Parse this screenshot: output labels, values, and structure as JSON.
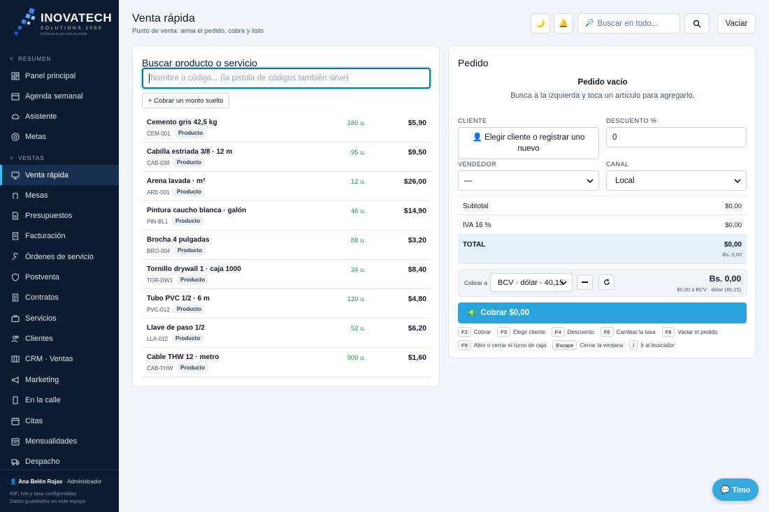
{
  "brand": {
    "name": "INOVATECH",
    "sub": "SOLUTIONS 2050",
    "slogan": "Creamos lo que aún no existe"
  },
  "sidebar": {
    "sections": [
      {
        "label": "RESUMEN",
        "items": [
          "Panel principal",
          "Agenda semanal",
          "Asistente",
          "Metas"
        ]
      },
      {
        "label": "VENTAS",
        "items": [
          "Venta rápida",
          "Mesas",
          "Presupuestos",
          "Facturación",
          "Órdenes de servicio",
          "Postventa",
          "Contratos",
          "Servicios",
          "Clientes",
          "CRM · Ventas",
          "Marketing",
          "En la calle",
          "Citas",
          "Mensualidades",
          "Despacho"
        ]
      }
    ],
    "active": "Venta rápida",
    "user": {
      "name": "Ana Belén Rojas",
      "role": "· Administrador"
    },
    "notes": [
      "RIF, IVA y tasa configurables",
      "Datos guardados en este equipo"
    ]
  },
  "header": {
    "title": "Venta rápida",
    "subtitle": "Punto de venta: arma el pedido, cobra y listo",
    "theme_icon": "🌙",
    "bell_icon": "🔔",
    "search_placeholder": "Buscar en todo...",
    "clear_label": "Vaciar"
  },
  "products_panel": {
    "title": "Buscar producto o servicio",
    "search_placeholder": "Nombre o código... (la pistola de códigos también sirve)",
    "loose_amount_label": "+ Cobrar un monto suelto",
    "products": [
      {
        "name": "Cemento gris 42,5 kg",
        "code": "CEM-001",
        "tag": "Producto",
        "stock": "180 u.",
        "price": "$5,90"
      },
      {
        "name": "Cabilla estriada 3/8 · 12 m",
        "code": "CAB-038",
        "tag": "Producto",
        "stock": "95 u.",
        "price": "$9,50"
      },
      {
        "name": "Arena lavada · m³",
        "code": "ARE-001",
        "tag": "Producto",
        "stock": "12 u.",
        "price": "$26,00"
      },
      {
        "name": "Pintura caucho blanca · galón",
        "code": "PIN-BL1",
        "tag": "Producto",
        "stock": "46 u.",
        "price": "$14,90"
      },
      {
        "name": "Brocha 4 pulgadas",
        "code": "BRO-004",
        "tag": "Producto",
        "stock": "88 u.",
        "price": "$3,20"
      },
      {
        "name": "Tornillo drywall 1 · caja 1000",
        "code": "TOR-DW1",
        "tag": "Producto",
        "stock": "34 u.",
        "price": "$8,40"
      },
      {
        "name": "Tubo PVC 1/2 · 6 m",
        "code": "PVC-012",
        "tag": "Producto",
        "stock": "120 u.",
        "price": "$4,80"
      },
      {
        "name": "Llave de paso 1/2",
        "code": "LLA-012",
        "tag": "Producto",
        "stock": "52 u.",
        "price": "$6,20"
      },
      {
        "name": "Cable THW 12 · metro",
        "code": "CAB-THW",
        "tag": "Producto",
        "stock": "900 u.",
        "price": "$1,60"
      }
    ]
  },
  "order_panel": {
    "title": "Pedido",
    "empty_title": "Pedido vacío",
    "empty_sub": "Busca a la izquierda y toca un artículo para agregarlo.",
    "client_label": "CLIENTE",
    "client_button": "Elegir cliente o registrar uno nuevo",
    "discount_label": "DESCUENTO %",
    "discount_value": "0",
    "seller_label": "VENDEDOR",
    "seller_value": "—",
    "channel_label": "CANAL",
    "channel_value": "Local",
    "subtotal_label": "Subtotal",
    "subtotal_value": "$0,00",
    "iva_label": "IVA 16 %",
    "iva_value": "$0,00",
    "total_label": "TOTAL",
    "total_value": "$0,00",
    "total_bs": "Bs. 0,00",
    "pay_to_label": "Cobrar a",
    "rate_value": "BCV · dólar · 40,15",
    "bs_amount": "Bs. 0,00",
    "bs_detail": "$0,00 a BCV · dólar (40,15)",
    "charge_button": "Cobrar $0,00",
    "shortcuts_row1": [
      {
        "key": "F2",
        "desc": "Cobrar"
      },
      {
        "key": "F3",
        "desc": "Elegir cliente"
      },
      {
        "key": "F4",
        "desc": "Descuento"
      },
      {
        "key": "F6",
        "desc": "Cambiar la tasa"
      },
      {
        "key": "F8",
        "desc": "Vaciar el pedido"
      }
    ],
    "shortcuts_row2": [
      {
        "key": "F9",
        "desc": "Abrir o cerrar el turno de caja"
      },
      {
        "key": "Escape",
        "desc": "Cerrar la ventana"
      },
      {
        "key": "/",
        "desc": "Ir al buscador"
      }
    ]
  },
  "assistant_button": "💬 Timo",
  "colors": {
    "sidebar_bg": "#0d1b30",
    "accent": "#38bdf8",
    "charge_button": "#2aa4dc",
    "stock_green": "#16a34a"
  }
}
